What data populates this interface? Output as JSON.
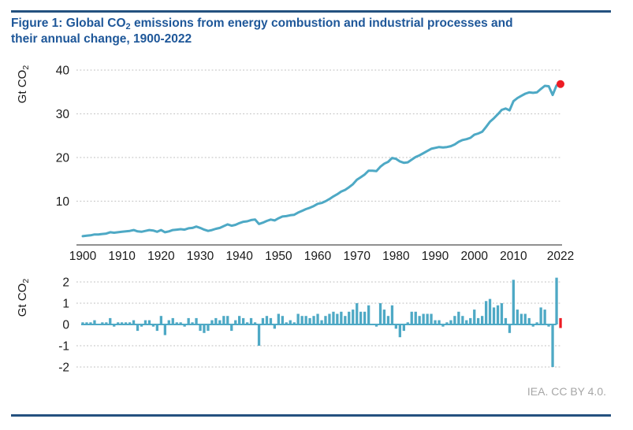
{
  "title": {
    "line1_prefix": "Figure 1: Global CO",
    "line1_sub": "2",
    "line1_rest": " emissions from energy combustion and industrial processes and",
    "line2": "their annual change, 1900-2022"
  },
  "footer": {
    "credit": "IEA. CC BY 4.0."
  },
  "colors": {
    "title_blue": "#1E5799",
    "rule_navy": "#24517F",
    "series_teal": "#4EA9C5",
    "highlight_red": "#ED1C24",
    "gridline_gray": "#C9C9C9",
    "axis_gray": "#909090",
    "tick_text": "#1A1A1A",
    "credit_gray": "#A6A6A6"
  },
  "chart_data": [
    {
      "type": "line",
      "name": "global-co2-emissions",
      "ylabel": "Gt CO2",
      "ylabel_prefix": "Gt CO",
      "ylabel_sub": "2",
      "x_years": {
        "start": 1900,
        "end": 2022,
        "step": 1
      },
      "values": [
        2.0,
        2.1,
        2.2,
        2.4,
        2.4,
        2.5,
        2.6,
        2.9,
        2.8,
        2.9,
        3.0,
        3.1,
        3.2,
        3.4,
        3.1,
        3.0,
        3.2,
        3.4,
        3.3,
        3.0,
        3.4,
        2.9,
        3.1,
        3.4,
        3.5,
        3.6,
        3.5,
        3.8,
        3.9,
        4.2,
        3.9,
        3.5,
        3.2,
        3.4,
        3.7,
        3.9,
        4.3,
        4.7,
        4.4,
        4.6,
        5.0,
        5.3,
        5.4,
        5.7,
        5.8,
        4.8,
        5.1,
        5.5,
        5.8,
        5.6,
        6.1,
        6.5,
        6.6,
        6.8,
        6.9,
        7.4,
        7.8,
        8.2,
        8.5,
        8.9,
        9.4,
        9.6,
        10.0,
        10.5,
        11.1,
        11.6,
        12.2,
        12.6,
        13.2,
        13.9,
        14.9,
        15.5,
        16.1,
        17.0,
        17.0,
        16.9,
        17.9,
        18.6,
        19.0,
        19.9,
        19.7,
        19.1,
        18.8,
        18.9,
        19.5,
        20.1,
        20.5,
        21.0,
        21.5,
        22.0,
        22.2,
        22.4,
        22.3,
        22.4,
        22.6,
        23.0,
        23.6,
        24.0,
        24.2,
        24.5,
        25.2,
        25.5,
        25.9,
        27.0,
        28.2,
        29.0,
        29.9,
        30.9,
        31.2,
        30.8,
        32.9,
        33.6,
        34.1,
        34.6,
        34.9,
        34.8,
        34.9,
        35.7,
        36.4,
        36.3,
        34.3,
        36.5,
        36.8
      ],
      "ylim": [
        0,
        40
      ],
      "y_ticks": [
        10,
        20,
        30,
        40
      ],
      "x_ticks": [
        1900,
        1910,
        1920,
        1930,
        1940,
        1950,
        1960,
        1970,
        1980,
        1990,
        2000,
        2010,
        2022
      ],
      "grid": "dotted-horizontal",
      "legend": "none",
      "highlight_last_point": true,
      "last_point_year": 2022,
      "last_point_value": 36.8
    },
    {
      "type": "bar",
      "name": "annual-change-in-co2-emissions",
      "ylabel": "Gt CO2",
      "ylabel_prefix": "Gt CO",
      "ylabel_sub": "2",
      "x_years": {
        "start": 1900,
        "end": 2022,
        "step": 1
      },
      "values": [
        0.1,
        0.1,
        0.1,
        0.2,
        0.0,
        0.1,
        0.1,
        0.3,
        -0.1,
        0.1,
        0.1,
        0.1,
        0.1,
        0.2,
        -0.3,
        -0.1,
        0.2,
        0.2,
        -0.1,
        -0.3,
        0.4,
        -0.5,
        0.2,
        0.3,
        0.1,
        0.1,
        -0.1,
        0.3,
        0.1,
        0.3,
        -0.3,
        -0.4,
        -0.3,
        0.2,
        0.3,
        0.2,
        0.4,
        0.4,
        -0.3,
        0.2,
        0.4,
        0.3,
        0.1,
        0.3,
        0.1,
        -1.0,
        0.3,
        0.4,
        0.3,
        -0.2,
        0.5,
        0.4,
        0.1,
        0.2,
        0.1,
        0.5,
        0.4,
        0.4,
        0.3,
        0.4,
        0.5,
        0.2,
        0.4,
        0.5,
        0.6,
        0.5,
        0.6,
        0.4,
        0.6,
        0.7,
        1.0,
        0.6,
        0.6,
        0.9,
        0.0,
        -0.1,
        1.0,
        0.7,
        0.4,
        0.9,
        -0.2,
        -0.6,
        -0.3,
        0.1,
        0.6,
        0.6,
        0.4,
        0.5,
        0.5,
        0.5,
        0.2,
        0.2,
        -0.1,
        0.1,
        0.2,
        0.4,
        0.6,
        0.4,
        0.2,
        0.3,
        0.7,
        0.3,
        0.4,
        1.1,
        1.2,
        0.8,
        0.9,
        1.0,
        0.3,
        -0.4,
        2.1,
        0.7,
        0.5,
        0.5,
        0.3,
        -0.1,
        0.1,
        0.8,
        0.7,
        -0.1,
        -2.0,
        2.2,
        0.3
      ],
      "ylim": [
        -2,
        2
      ],
      "y_ticks": [
        2,
        1,
        0,
        -1,
        -2
      ],
      "grid": "dotted-horizontal",
      "legend": "none",
      "highlight_last_bar": true,
      "last_bar_year": 2022,
      "last_bar_value": 0.3
    }
  ]
}
